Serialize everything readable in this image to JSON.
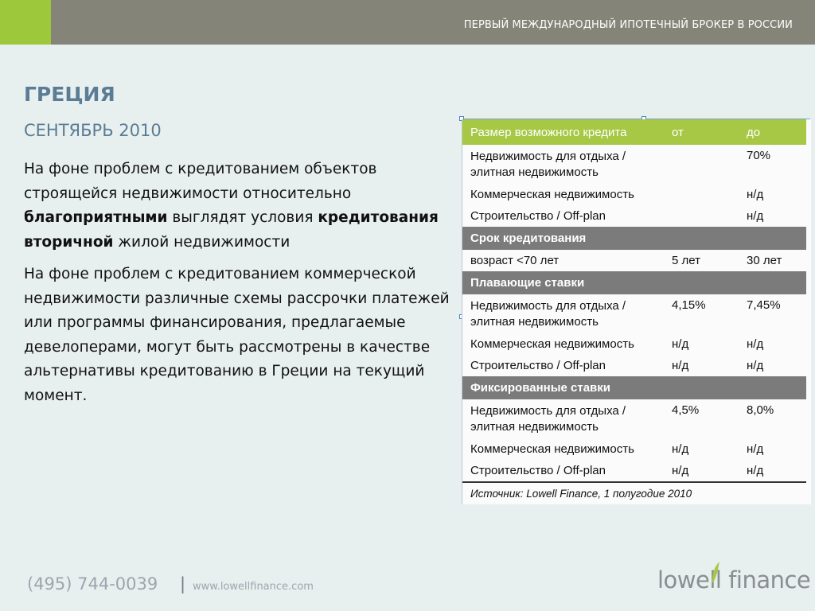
{
  "header": {
    "tagline": "ПЕРВЫЙ МЕЖДУНАРОДНЫЙ ИПОТЕЧНЫЙ БРОКЕР В РОССИИ"
  },
  "slide": {
    "title": "ГРЕЦИЯ",
    "subtitle": "СЕНТЯБРЬ 2010",
    "p1": {
      "t1": "На фоне проблем с кредитованием объектов строящейся недвижимости относительно ",
      "b1": "благоприятными",
      "t2": " выглядят условия ",
      "b2": "кредитования вторичной",
      "t3": " жилой недвижимости"
    },
    "p2": "На фоне проблем с кредитованием коммерческой недвижимости различные схемы рассрочки платежей или программы финансирования, предлагаемые девелоперами, могут быть рассмотрены в качестве альтернативы кредитованию в Греции на текущий момент."
  },
  "table": {
    "header": {
      "c1": "Размер возможного кредита",
      "c2": "от",
      "c3": "до"
    },
    "r1": {
      "c1": "Недвижимость для отдыха / элитная недвижимость",
      "c2": "",
      "c3": "70%"
    },
    "r2": {
      "c1": "Коммерческая недвижимость",
      "c2": "",
      "c3": "н/д"
    },
    "r3": {
      "c1": "Строительство / Off-plan",
      "c2": "",
      "c3": "н/д"
    },
    "s1": "Срок кредитования",
    "r4": {
      "c1": "возраст <70 лет",
      "c2": "5 лет",
      "c3": "30 лет"
    },
    "s2": "Плавающие ставки",
    "r5": {
      "c1": "Недвижимость для отдыха / элитная недвижимость",
      "c2": "4,15%",
      "c3": "7,45%"
    },
    "r6": {
      "c1": "Коммерческая недвижимость",
      "c2": "н/д",
      "c3": "н/д"
    },
    "r7": {
      "c1": "Строительство / Off-plan",
      "c2": "н/д",
      "c3": "н/д"
    },
    "s3": "Фиксированные ставки",
    "r8": {
      "c1": "Недвижимость для отдыха / элитная недвижимость",
      "c2": "4,5%",
      "c3": "8,0%"
    },
    "r9": {
      "c1": "Коммерческая недвижимость",
      "c2": "н/д",
      "c3": "н/д"
    },
    "r10": {
      "c1": "Строительство / Off-plan",
      "c2": "н/д",
      "c3": "н/д"
    },
    "source": "Источник: Lowell Finance, 1 полугодие 2010"
  },
  "footer": {
    "phone": "(495) 744-0039",
    "separator": "|",
    "url": "www.lowellfinance.com",
    "logo": "lowell finance"
  },
  "colors": {
    "accent_green": "#9dc83b",
    "title_blue": "#5a7d95",
    "topbar_gray": "#848478",
    "section_gray": "#7b7b7b"
  },
  "icons": {
    "logo_mark": "leaf-icon"
  }
}
